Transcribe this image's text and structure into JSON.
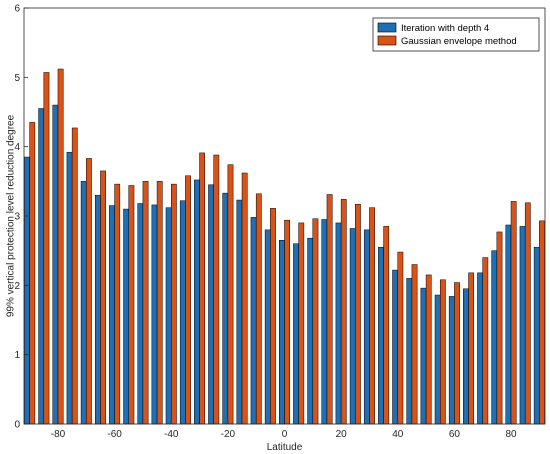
{
  "chart_data": {
    "type": "bar",
    "xlabel": "Latitude",
    "ylabel": "99% vertical protection level reduction degree",
    "xlim": [
      -92,
      92
    ],
    "ylim": [
      0,
      6
    ],
    "xticks": [
      -80,
      -60,
      -40,
      -20,
      0,
      20,
      40,
      60,
      80
    ],
    "yticks": [
      0,
      1,
      2,
      3,
      4,
      5,
      6
    ],
    "grid": false,
    "legend_position": "top-right",
    "categories": [
      -90,
      -85,
      -80,
      -75,
      -70,
      -65,
      -60,
      -55,
      -50,
      -45,
      -40,
      -35,
      -30,
      -25,
      -20,
      -15,
      -10,
      -5,
      0,
      5,
      10,
      15,
      20,
      25,
      30,
      35,
      40,
      45,
      50,
      55,
      60,
      65,
      70,
      75,
      80,
      85,
      90
    ],
    "series": [
      {
        "name": "Iteration with depth 4",
        "color": "#1f6fb5",
        "values": [
          3.85,
          4.55,
          4.6,
          3.92,
          3.5,
          3.3,
          3.15,
          3.1,
          3.18,
          3.16,
          3.12,
          3.22,
          3.52,
          3.45,
          3.33,
          3.23,
          2.98,
          2.8,
          2.65,
          2.6,
          2.68,
          2.95,
          2.9,
          2.82,
          2.8,
          2.55,
          2.22,
          2.1,
          1.96,
          1.86,
          1.84,
          1.95,
          2.18,
          2.5,
          2.87,
          2.85,
          2.55
        ]
      },
      {
        "name": "Gaussian envelope method",
        "color": "#d95319",
        "values": [
          4.35,
          5.07,
          5.12,
          4.27,
          3.83,
          3.65,
          3.46,
          3.44,
          3.5,
          3.5,
          3.46,
          3.58,
          3.91,
          3.88,
          3.74,
          3.62,
          3.32,
          3.11,
          2.94,
          2.9,
          2.96,
          3.31,
          3.24,
          3.17,
          3.12,
          2.85,
          2.48,
          2.3,
          2.15,
          2.08,
          2.04,
          2.18,
          2.4,
          2.77,
          3.21,
          3.19,
          2.93
        ]
      }
    ]
  }
}
